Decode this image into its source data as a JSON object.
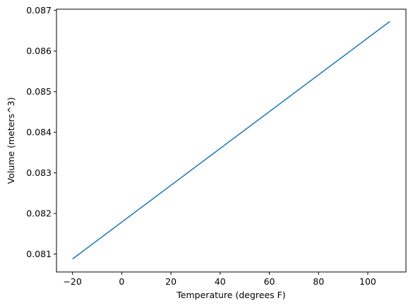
{
  "chart_data": {
    "type": "line",
    "title": "",
    "xlabel": "Temperature (degrees F)",
    "ylabel": "Volume (meters^3)",
    "xlim": [
      -26.5,
      115.5
    ],
    "ylim": [
      0.08056,
      0.08703
    ],
    "xticks": [
      -20,
      0,
      20,
      40,
      60,
      80,
      100
    ],
    "yticks": [
      0.081,
      0.082,
      0.083,
      0.084,
      0.085,
      0.086,
      0.087
    ],
    "xtick_labels": [
      "−20",
      "0",
      "20",
      "40",
      "60",
      "80",
      "100"
    ],
    "ytick_labels": [
      "0.081",
      "0.082",
      "0.083",
      "0.084",
      "0.085",
      "0.086",
      "0.087"
    ],
    "grid": false,
    "series": [
      {
        "color": "#1f77b4",
        "x": [
          -20,
          109
        ],
        "y": [
          0.08088,
          0.08673
        ]
      }
    ]
  }
}
